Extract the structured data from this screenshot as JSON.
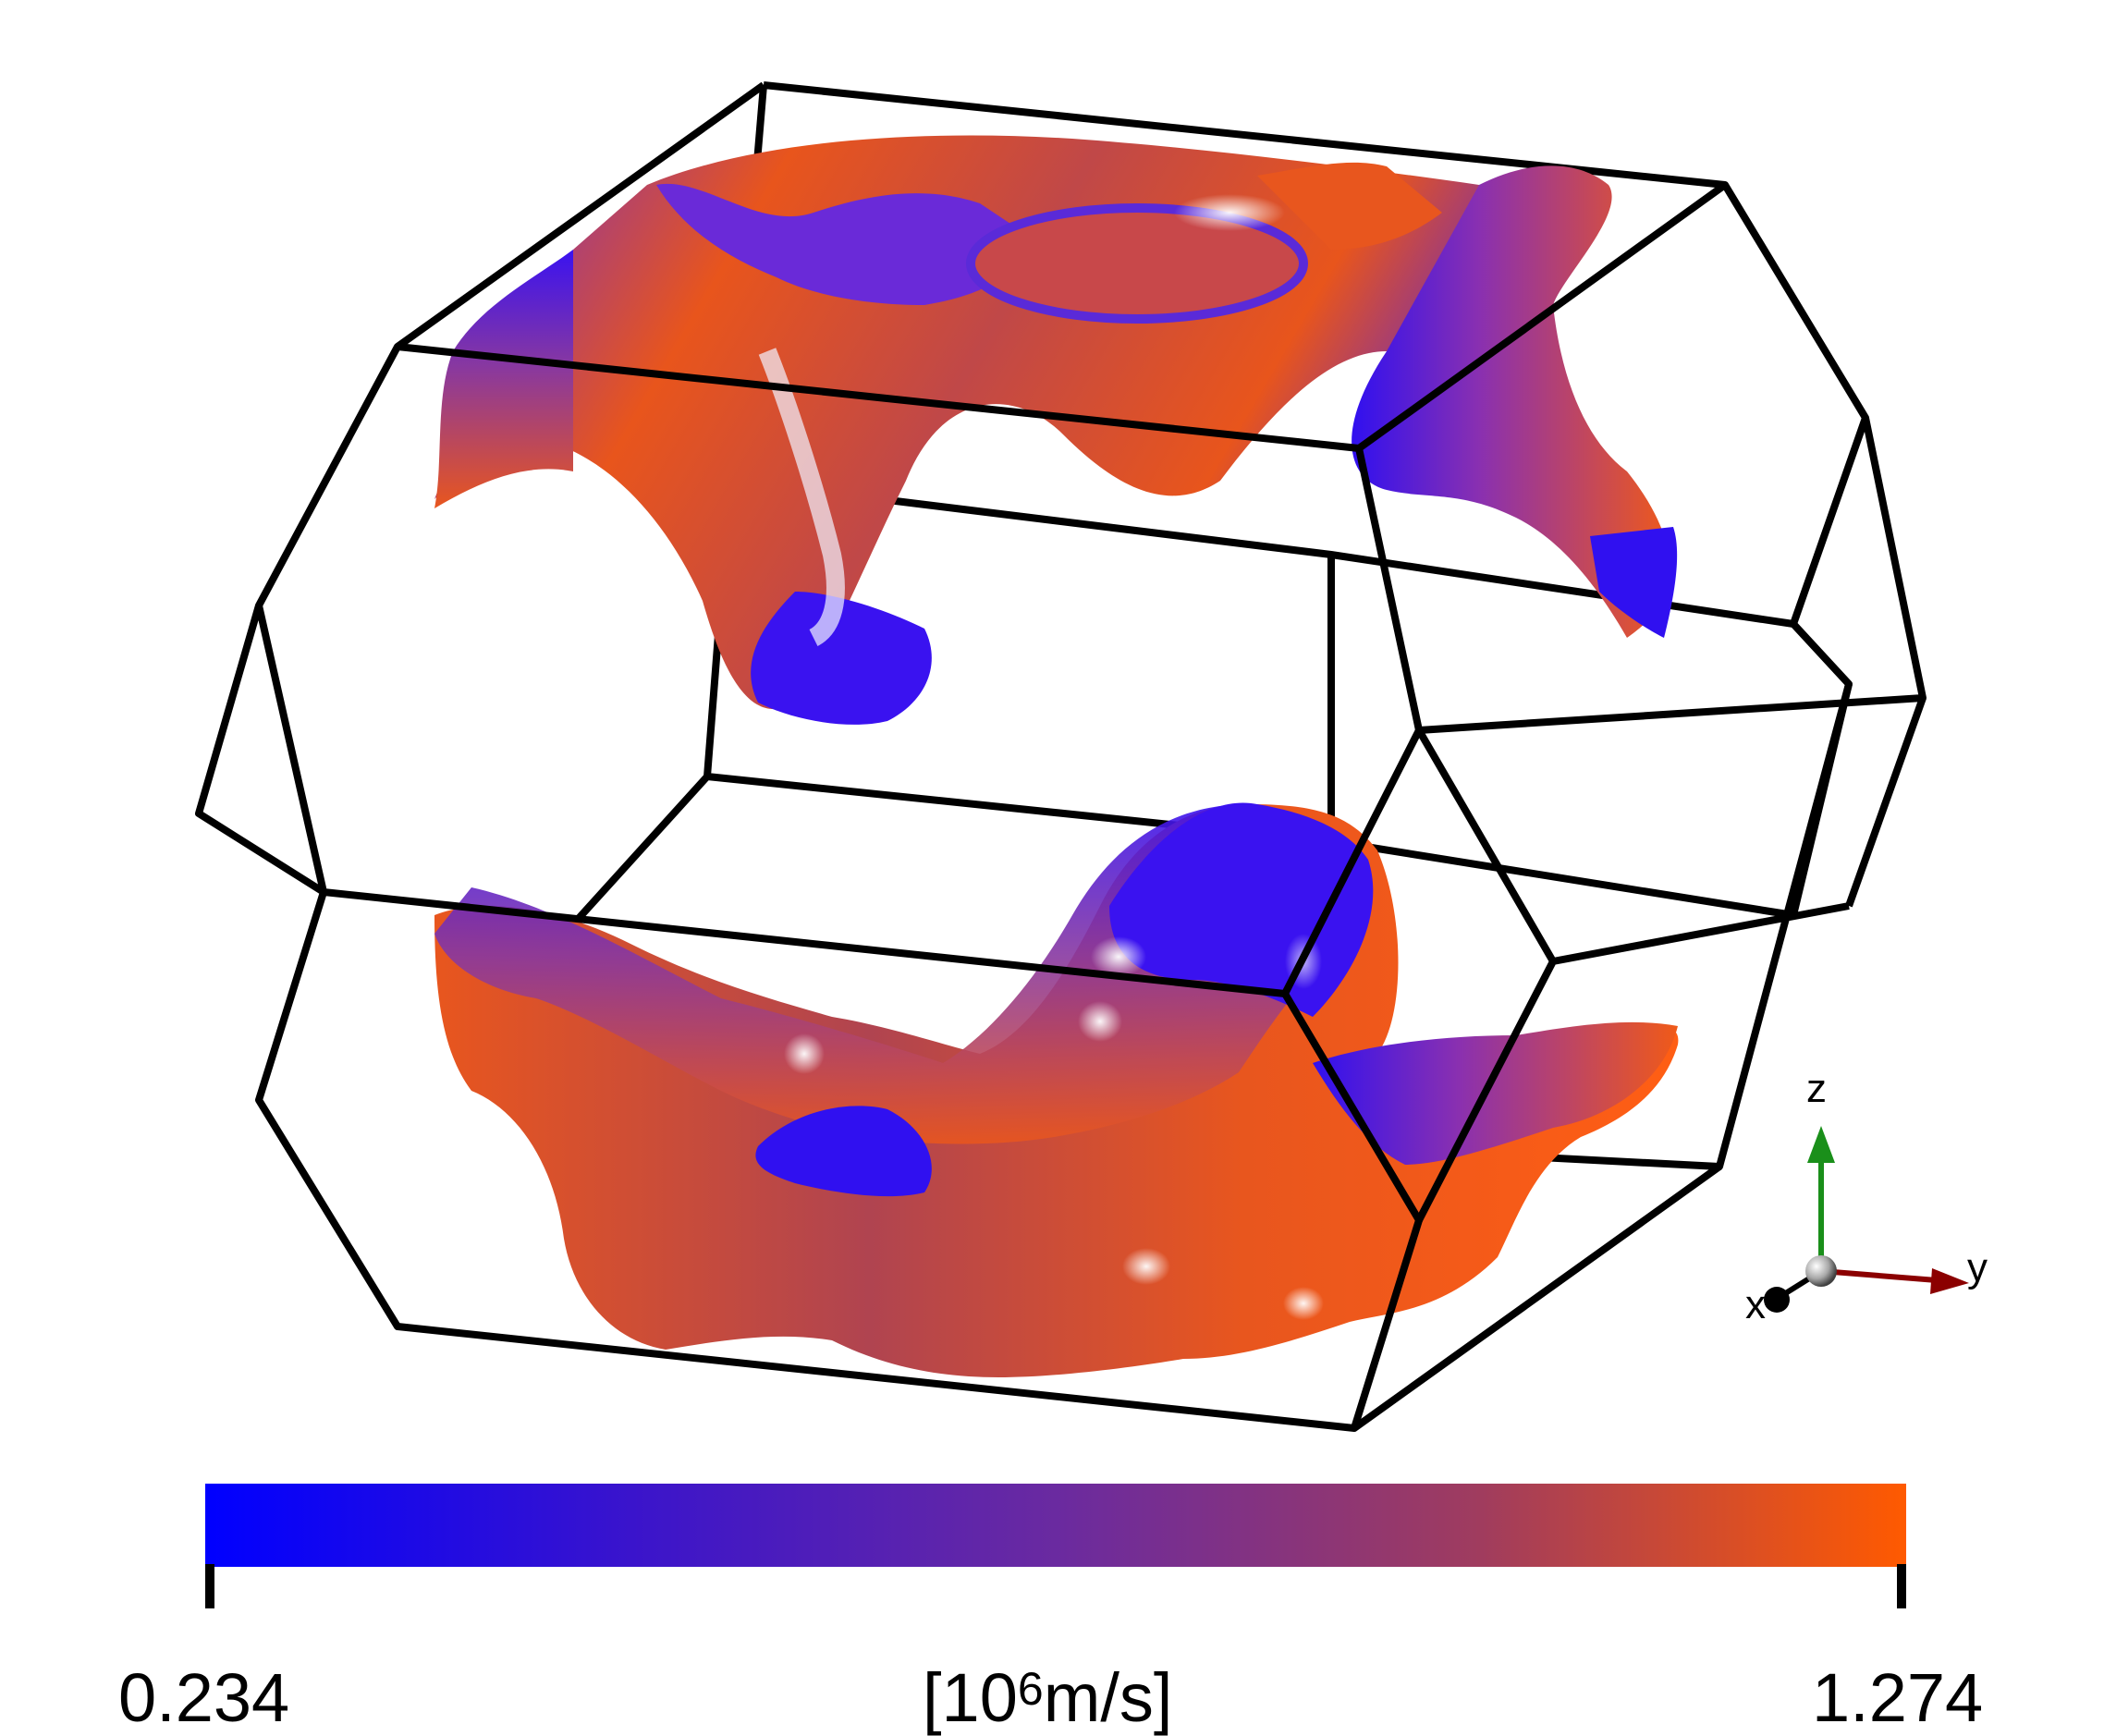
{
  "colorbar": {
    "min_label": "0.234",
    "max_label": "1.274",
    "unit_prefix": "[10",
    "unit_exponent": "6",
    "unit_suffix": "m/s]",
    "colors": [
      "#0000ff",
      "#3a14cc",
      "#6a2aa0",
      "#a03c5e",
      "#ff5a00"
    ]
  },
  "axes": {
    "z": {
      "label": "z",
      "color": "#1a8f1a"
    },
    "y": {
      "label": "y",
      "color": "#8b0000"
    },
    "x": {
      "label": "x",
      "color": "#000000"
    }
  },
  "surface_colors": {
    "high": "#f05a1a",
    "low": "#3a10e6",
    "mid": "#8a3a8a"
  },
  "edge_color": "#000000"
}
